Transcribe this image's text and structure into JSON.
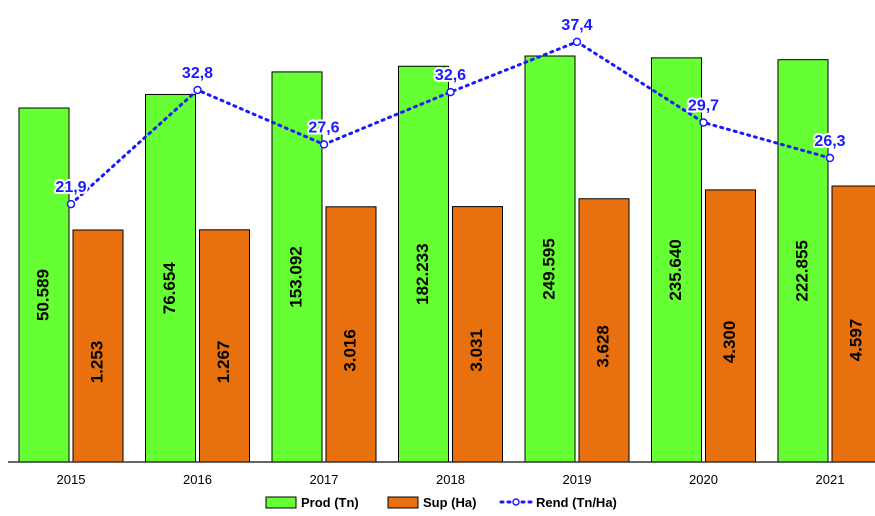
{
  "chart_data": {
    "type": "bar",
    "categories": [
      "2015",
      "2016",
      "2017",
      "2018",
      "2019",
      "2020",
      "2021"
    ],
    "series": [
      {
        "name": "Prod (Tn)",
        "kind": "bar",
        "color": "#66ff33",
        "values": [
          50589,
          76654,
          153092,
          182233,
          249595,
          235640,
          222855
        ],
        "labels": [
          "50.589",
          "76.654",
          "153.092",
          "182.233",
          "249.595",
          "235.640",
          "222.855"
        ]
      },
      {
        "name": "Sup (Ha)",
        "kind": "bar",
        "color": "#e8700f",
        "values": [
          1253,
          1267,
          3016,
          3031,
          3628,
          4300,
          4597
        ],
        "labels": [
          "1.253",
          "1.267",
          "3.016",
          "3.031",
          "3.628",
          "4.300",
          "4.597"
        ]
      },
      {
        "name": "Rend (Tn/Ha)",
        "kind": "line",
        "style": "dotted",
        "color": "#1a1aff",
        "values": [
          21.9,
          32.8,
          27.6,
          32.6,
          37.4,
          29.7,
          26.3
        ],
        "labels": [
          "21,9",
          "32,8",
          "27,6",
          "32,6",
          "37,4",
          "29,7",
          "26,3"
        ]
      }
    ],
    "legend_position": "bottom-center",
    "grid": false,
    "title": "",
    "xlabel": "",
    "ylabel": ""
  }
}
